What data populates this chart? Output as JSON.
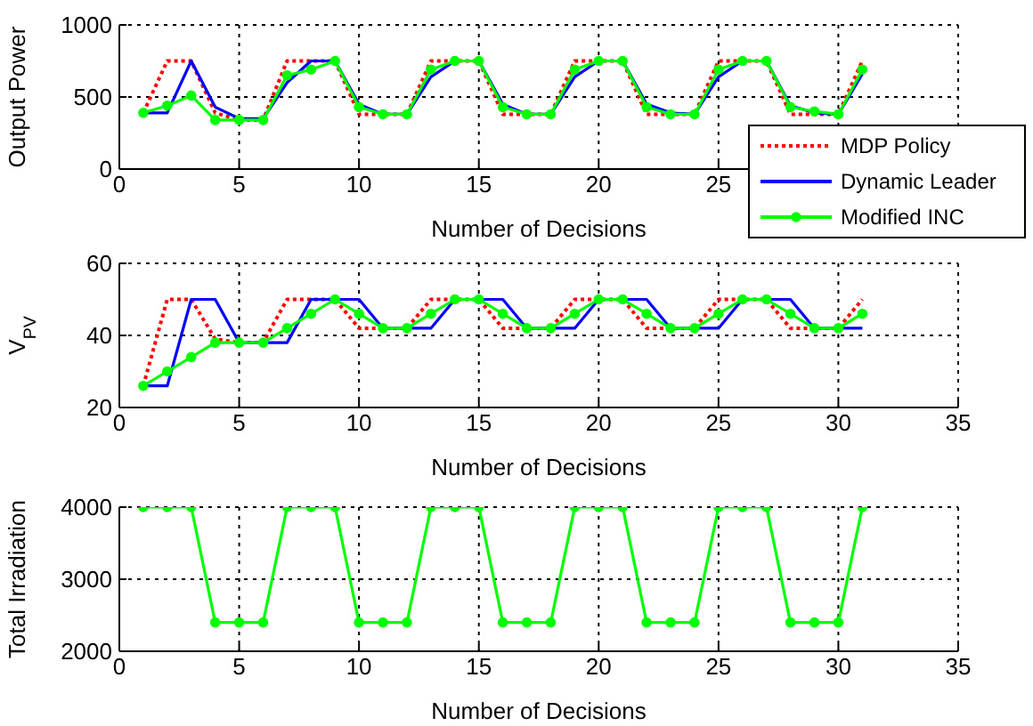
{
  "chart_data": [
    {
      "type": "line",
      "ylabel": "Output Power",
      "xlabel": "Number of Decisions",
      "x": [
        1,
        2,
        3,
        4,
        5,
        6,
        7,
        8,
        9,
        10,
        11,
        12,
        13,
        14,
        15,
        16,
        17,
        18,
        19,
        20,
        21,
        22,
        23,
        24,
        25,
        26,
        27,
        28,
        29,
        30,
        31
      ],
      "xlim": [
        0,
        35
      ],
      "xticks": [
        0,
        5,
        10,
        15,
        20,
        25,
        {
          "value": 30,
          "label": null
        },
        {
          "value": 35,
          "label": null
        }
      ],
      "ylim": [
        0,
        1000
      ],
      "yticks": [
        0,
        500,
        1000
      ],
      "grid": true,
      "legend": "bottom right",
      "series": [
        {
          "name": "MDP Policy",
          "color": "#ff0000",
          "line_style": "dotted",
          "marker": "none",
          "values": [
            390,
            750,
            750,
            390,
            340,
            340,
            750,
            750,
            750,
            380,
            380,
            380,
            750,
            750,
            750,
            380,
            380,
            380,
            750,
            750,
            750,
            380,
            380,
            380,
            750,
            750,
            750,
            380,
            380,
            380,
            750
          ]
        },
        {
          "name": "Dynamic Leader",
          "color": "#0000ff",
          "line_style": "solid",
          "marker": "none",
          "values": [
            390,
            390,
            750,
            430,
            350,
            350,
            600,
            750,
            750,
            450,
            380,
            380,
            640,
            750,
            750,
            450,
            380,
            380,
            640,
            750,
            750,
            450,
            390,
            380,
            640,
            750,
            750,
            440,
            390,
            380,
            660
          ]
        },
        {
          "name": "Modified INC",
          "color": "#00ff00",
          "line_style": "solid",
          "marker": "circle",
          "values": [
            390,
            440,
            510,
            340,
            340,
            340,
            650,
            690,
            750,
            430,
            380,
            380,
            690,
            750,
            750,
            430,
            380,
            380,
            690,
            750,
            750,
            430,
            380,
            380,
            690,
            750,
            750,
            430,
            400,
            380,
            690
          ]
        }
      ]
    },
    {
      "type": "line",
      "ylabel": "V$_{PV}$",
      "xlabel": "Number of Decisions",
      "x": [
        1,
        2,
        3,
        4,
        5,
        6,
        7,
        8,
        9,
        10,
        11,
        12,
        13,
        14,
        15,
        16,
        17,
        18,
        19,
        20,
        21,
        22,
        23,
        24,
        25,
        26,
        27,
        28,
        29,
        30,
        31
      ],
      "xlim": [
        0,
        35
      ],
      "xticks": [
        0,
        5,
        10,
        15,
        20,
        25,
        30,
        35
      ],
      "ylim": [
        20,
        60
      ],
      "yticks": [
        20,
        40,
        60
      ],
      "grid": true,
      "series": [
        {
          "color": "#ff0000",
          "line_style": "dotted",
          "marker": "none",
          "values": [
            26,
            50,
            50,
            39,
            38,
            38,
            50,
            50,
            50,
            42,
            42,
            42,
            50,
            50,
            50,
            42,
            42,
            42,
            50,
            50,
            50,
            42,
            42,
            42,
            50,
            50,
            50,
            42,
            42,
            42,
            50
          ]
        },
        {
          "color": "#0000ff",
          "line_style": "solid",
          "marker": "none",
          "values": [
            26,
            26,
            50,
            50,
            38,
            38,
            38,
            50,
            50,
            50,
            42,
            42,
            42,
            50,
            50,
            50,
            42,
            42,
            42,
            50,
            50,
            50,
            42,
            42,
            42,
            50,
            50,
            50,
            42,
            42,
            42
          ]
        },
        {
          "color": "#00ff00",
          "line_style": "solid",
          "marker": "circle",
          "values": [
            26,
            30,
            34,
            38,
            38,
            38,
            42,
            46,
            50,
            46,
            42,
            42,
            46,
            50,
            50,
            46,
            42,
            42,
            46,
            50,
            50,
            46,
            42,
            42,
            46,
            50,
            50,
            46,
            42,
            42,
            46
          ]
        }
      ]
    },
    {
      "type": "line",
      "ylabel": "Total Irradiation",
      "xlabel": "Number of Decisions",
      "x": [
        1,
        2,
        3,
        4,
        5,
        6,
        7,
        8,
        9,
        10,
        11,
        12,
        13,
        14,
        15,
        16,
        17,
        18,
        19,
        20,
        21,
        22,
        23,
        24,
        25,
        26,
        27,
        28,
        29,
        30,
        31
      ],
      "xlim": [
        0,
        35
      ],
      "xticks": [
        0,
        5,
        10,
        15,
        20,
        25,
        30,
        35
      ],
      "ylim": [
        2000,
        4000
      ],
      "yticks": [
        2000,
        3000,
        4000
      ],
      "grid": true,
      "series": [
        {
          "color": "#00ff00",
          "line_style": "solid",
          "marker": "circle",
          "values": [
            4000,
            4000,
            4000,
            2400,
            2400,
            2400,
            4000,
            4000,
            4000,
            2400,
            2400,
            2400,
            4000,
            4000,
            4000,
            2400,
            2400,
            2400,
            4000,
            4000,
            4000,
            2400,
            2400,
            2400,
            4000,
            4000,
            4000,
            2400,
            2400,
            2400,
            4000
          ]
        }
      ]
    }
  ]
}
